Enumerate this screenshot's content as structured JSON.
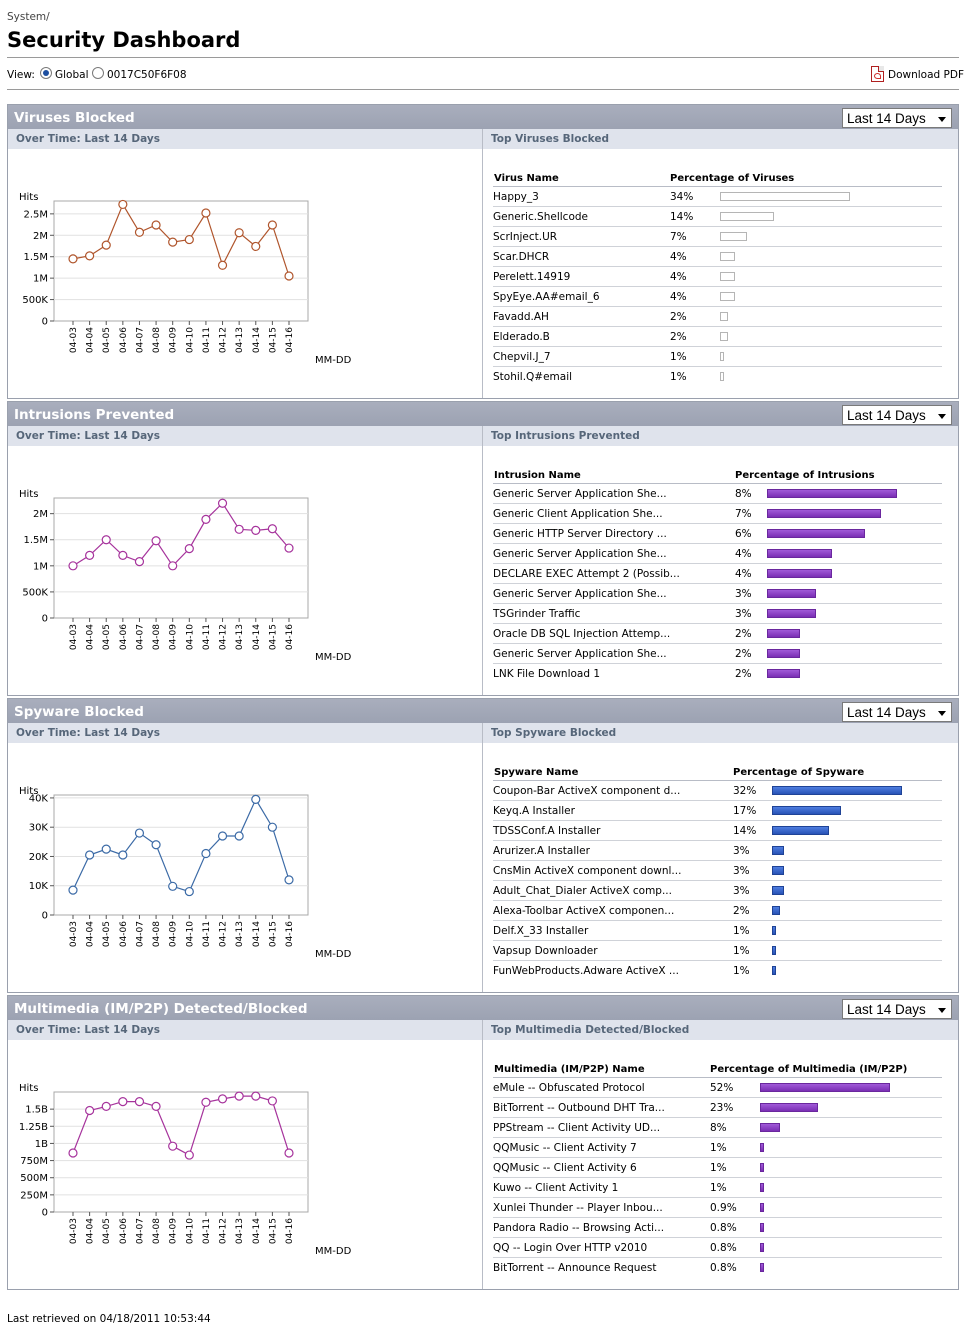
{
  "breadcrumb": "System/",
  "page_title": "Security Dashboard",
  "toolbar": {
    "view_label": "View:",
    "options": [
      {
        "label": "Global",
        "checked": true
      },
      {
        "label": "0017C50F6F08",
        "checked": false
      }
    ],
    "download_label": "Download PDF"
  },
  "colors": {
    "header": "#a3a8b8",
    "subbar": "#dfe3ec",
    "viruses_line": "#b0552c",
    "intrusions_line": "#a6339c",
    "spyware_line": "#3b6aa6",
    "multimedia_line": "#a6339c"
  },
  "panels": [
    {
      "title": "Viruses Blocked",
      "range": "Last 14 Days",
      "left_header": "Over Time: Last 14 Days",
      "right_header": "Top Viruses Blocked",
      "col_name": "Virus Name",
      "col_pct": "Percentage of Viruses",
      "bar_style": "hollow",
      "rows": [
        {
          "name": "Happy_3",
          "pct": "34%",
          "value": 34
        },
        {
          "name": "Generic.Shellcode",
          "pct": "14%",
          "value": 14
        },
        {
          "name": "ScrInject.UR",
          "pct": "7%",
          "value": 7
        },
        {
          "name": "Scar.DHCR",
          "pct": "4%",
          "value": 4
        },
        {
          "name": "Perelett.14919",
          "pct": "4%",
          "value": 4
        },
        {
          "name": "SpyEye.AA#email_6",
          "pct": "4%",
          "value": 4
        },
        {
          "name": "Favadd.AH",
          "pct": "2%",
          "value": 2
        },
        {
          "name": "Elderado.B",
          "pct": "2%",
          "value": 2
        },
        {
          "name": "Chepvil.J_7",
          "pct": "1%",
          "value": 1
        },
        {
          "name": "Stohil.Q#email",
          "pct": "1%",
          "value": 1
        }
      ],
      "chart_data": {
        "type": "line",
        "ylabel": "Hits",
        "xlabel": "MM-DD",
        "categories": [
          "04-03",
          "04-04",
          "04-05",
          "04-06",
          "04-07",
          "04-08",
          "04-09",
          "04-10",
          "04-11",
          "04-12",
          "04-13",
          "04-14",
          "04-15",
          "04-16"
        ],
        "ylim": [
          0,
          2800000
        ],
        "yticks": [
          0,
          500000,
          1000000,
          1500000,
          2000000,
          2500000
        ],
        "ytick_labels": [
          "0",
          "500K",
          "1M",
          "1.5M",
          "2M",
          "2.5M"
        ],
        "values": [
          1450000,
          1520000,
          1770000,
          2720000,
          2070000,
          2240000,
          1840000,
          1900000,
          2520000,
          1300000,
          2060000,
          1740000,
          2240000,
          1050000
        ],
        "color": "#b0552c"
      }
    },
    {
      "title": "Intrusions Prevented",
      "range": "Last 14 Days",
      "left_header": "Over Time: Last 14 Days",
      "right_header": "Top Intrusions Prevented",
      "col_name": "Intrusion Name",
      "col_pct": "Percentage of Intrusions",
      "bar_style": "purple",
      "rows": [
        {
          "name": "Generic Server Application She...",
          "pct": "8%",
          "value": 8
        },
        {
          "name": "Generic Client Application She...",
          "pct": "7%",
          "value": 7
        },
        {
          "name": "Generic HTTP Server Directory ...",
          "pct": "6%",
          "value": 6
        },
        {
          "name": "Generic Server Application She...",
          "pct": "4%",
          "value": 4
        },
        {
          "name": "DECLARE EXEC Attempt 2 (Possib...",
          "pct": "4%",
          "value": 4
        },
        {
          "name": "Generic Server Application She...",
          "pct": "3%",
          "value": 3
        },
        {
          "name": "TSGrinder Traffic",
          "pct": "3%",
          "value": 3
        },
        {
          "name": "Oracle DB SQL Injection Attemp...",
          "pct": "2%",
          "value": 2
        },
        {
          "name": "Generic Server Application She...",
          "pct": "2%",
          "value": 2
        },
        {
          "name": "LNK File Download 1",
          "pct": "2%",
          "value": 2
        }
      ],
      "chart_data": {
        "type": "line",
        "ylabel": "Hits",
        "xlabel": "MM-DD",
        "categories": [
          "04-03",
          "04-04",
          "04-05",
          "04-06",
          "04-07",
          "04-08",
          "04-09",
          "04-10",
          "04-11",
          "04-12",
          "04-13",
          "04-14",
          "04-15",
          "04-16"
        ],
        "ylim": [
          0,
          2300000
        ],
        "yticks": [
          0,
          500000,
          1000000,
          1500000,
          2000000
        ],
        "ytick_labels": [
          "0",
          "500K",
          "1M",
          "1.5M",
          "2M"
        ],
        "values": [
          1000000,
          1200000,
          1500000,
          1200000,
          1080000,
          1480000,
          1000000,
          1330000,
          1890000,
          2200000,
          1700000,
          1680000,
          1710000,
          1340000
        ],
        "color": "#a6339c"
      }
    },
    {
      "title": "Spyware Blocked",
      "range": "Last 14 Days",
      "left_header": "Over Time: Last 14 Days",
      "right_header": "Top Spyware Blocked",
      "col_name": "Spyware Name",
      "col_pct": "Percentage of Spyware",
      "bar_style": "blue",
      "rows": [
        {
          "name": "Coupon-Bar ActiveX component d...",
          "pct": "32%",
          "value": 32
        },
        {
          "name": "Keyq.A Installer",
          "pct": "17%",
          "value": 17
        },
        {
          "name": "TDSSConf.A Installer",
          "pct": "14%",
          "value": 14
        },
        {
          "name": "Arurizer.A Installer",
          "pct": "3%",
          "value": 3
        },
        {
          "name": "CnsMin ActiveX component downl...",
          "pct": "3%",
          "value": 3
        },
        {
          "name": "Adult_Chat_Dialer ActiveX comp...",
          "pct": "3%",
          "value": 3
        },
        {
          "name": "Alexa-Toolbar ActiveX componen...",
          "pct": "2%",
          "value": 2
        },
        {
          "name": "Delf.X_33 Installer",
          "pct": "1%",
          "value": 1
        },
        {
          "name": "Vapsup Downloader",
          "pct": "1%",
          "value": 1
        },
        {
          "name": "FunWebProducts.Adware ActiveX ...",
          "pct": "1%",
          "value": 1
        }
      ],
      "chart_data": {
        "type": "line",
        "ylabel": "Hits",
        "xlabel": "MM-DD",
        "categories": [
          "04-03",
          "04-04",
          "04-05",
          "04-06",
          "04-07",
          "04-08",
          "04-09",
          "04-10",
          "04-11",
          "04-12",
          "04-13",
          "04-14",
          "04-15",
          "04-16"
        ],
        "ylim": [
          0,
          41000
        ],
        "yticks": [
          0,
          10000,
          20000,
          30000,
          40000
        ],
        "ytick_labels": [
          "0",
          "10K",
          "20K",
          "30K",
          "40K"
        ],
        "values": [
          8500,
          20500,
          22500,
          20500,
          28000,
          24000,
          9800,
          8000,
          21000,
          27000,
          27000,
          39500,
          30000,
          12000
        ],
        "color": "#3b6aa6"
      }
    },
    {
      "title": "Multimedia (IM/P2P) Detected/Blocked",
      "range": "Last 14 Days",
      "left_header": "Over Time: Last 14 Days",
      "right_header": "Top Multimedia Detected/Blocked",
      "col_name": "Multimedia (IM/P2P) Name",
      "col_pct": "Percentage of Multimedia (IM/P2P)",
      "bar_style": "purple",
      "rows": [
        {
          "name": "eMule -- Obfuscated Protocol",
          "pct": "52%",
          "value": 52
        },
        {
          "name": "BitTorrent -- Outbound DHT Tra...",
          "pct": "23%",
          "value": 23
        },
        {
          "name": "PPStream -- Client Activity UD...",
          "pct": "8%",
          "value": 8
        },
        {
          "name": "QQMusic -- Client Activity 7",
          "pct": "1%",
          "value": 1
        },
        {
          "name": "QQMusic -- Client Activity 6",
          "pct": "1%",
          "value": 1
        },
        {
          "name": "Kuwo -- Client Activity 1",
          "pct": "1%",
          "value": 1
        },
        {
          "name": "Xunlei Thunder -- Player Inbou...",
          "pct": "0.9%",
          "value": 0.9
        },
        {
          "name": "Pandora Radio -- Browsing Acti...",
          "pct": "0.8%",
          "value": 0.8
        },
        {
          "name": "QQ -- Login Over HTTP v2010",
          "pct": "0.8%",
          "value": 0.8
        },
        {
          "name": "BitTorrent -- Announce Request",
          "pct": "0.8%",
          "value": 0.8
        }
      ],
      "chart_data": {
        "type": "line",
        "ylabel": "Hits",
        "xlabel": "MM-DD",
        "categories": [
          "04-03",
          "04-04",
          "04-05",
          "04-06",
          "04-07",
          "04-08",
          "04-09",
          "04-10",
          "04-11",
          "04-12",
          "04-13",
          "04-14",
          "04-15",
          "04-16"
        ],
        "ylim": [
          0,
          1750000000
        ],
        "yticks": [
          0,
          250000000,
          500000000,
          750000000,
          1000000000,
          1250000000,
          1500000000
        ],
        "ytick_labels": [
          "0",
          "250M",
          "500M",
          "750M",
          "1B",
          "1.25B",
          "1.5B"
        ],
        "values": [
          860000000,
          1480000000,
          1540000000,
          1610000000,
          1610000000,
          1540000000,
          960000000,
          830000000,
          1600000000,
          1650000000,
          1690000000,
          1690000000,
          1620000000,
          860000000
        ],
        "color": "#a6339c"
      }
    }
  ],
  "footer": "Last retrieved on 04/18/2011 10:53:44"
}
